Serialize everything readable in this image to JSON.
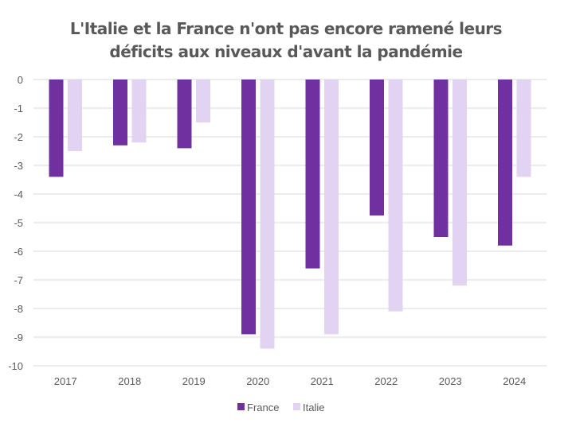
{
  "chart_data": {
    "type": "bar",
    "title_lines": [
      "L'Italie et la France n'ont pas encore ramené leurs",
      "déficits aux niveaux d'avant la pandémie"
    ],
    "xlabel": "",
    "ylabel": "",
    "categories": [
      "2017",
      "2018",
      "2019",
      "2020",
      "2021",
      "2022",
      "2023",
      "2024"
    ],
    "series": [
      {
        "name": "France",
        "color": "#7030a0",
        "values": [
          -3.4,
          -2.3,
          -2.4,
          -8.9,
          -6.6,
          -4.75,
          -5.5,
          -5.8
        ]
      },
      {
        "name": "Italie",
        "color": "#e2d3f2",
        "values": [
          -2.5,
          -2.2,
          -1.5,
          -9.4,
          -8.9,
          -8.1,
          -7.2,
          -3.4
        ]
      }
    ],
    "ylim": [
      -10,
      0
    ],
    "yticks": [
      0,
      -1,
      -2,
      -3,
      -4,
      -5,
      -6,
      -7,
      -8,
      -9,
      -10
    ],
    "grid": true,
    "gridline_color": "#d9d9d9",
    "legend_position": "bottom"
  }
}
